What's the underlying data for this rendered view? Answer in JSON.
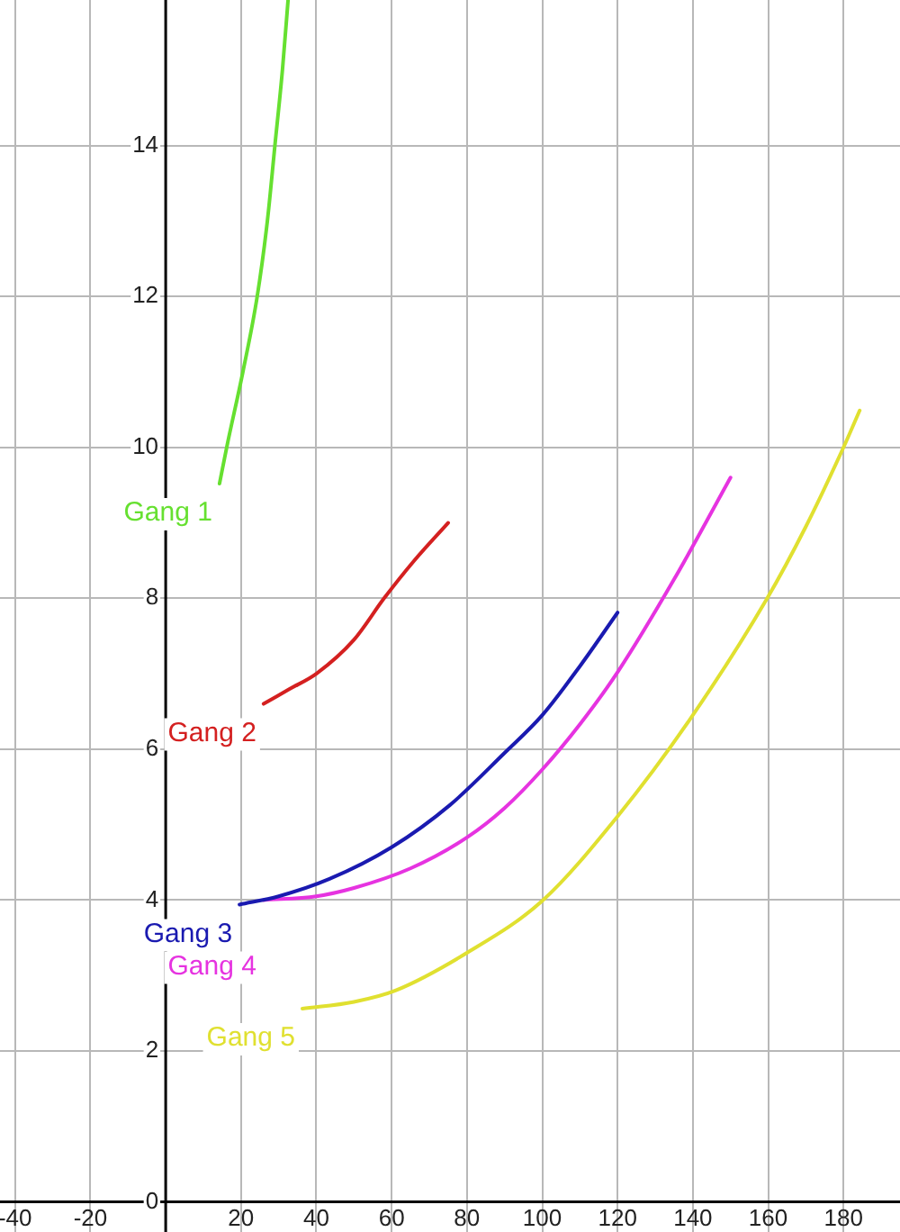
{
  "chart_data": {
    "type": "line",
    "xlim": [
      -44,
      195
    ],
    "ylim": [
      -0.4,
      15.93
    ],
    "xticks": [
      -40,
      -20,
      20,
      40,
      60,
      80,
      100,
      120,
      140,
      160,
      180
    ],
    "yticks": [
      0,
      2,
      4,
      6,
      8,
      10,
      12,
      14
    ],
    "grid": true,
    "marker": "none",
    "line_style": "solid",
    "series": [
      {
        "name": "Gang 1",
        "color": "#66e030",
        "x": [
          14.3,
          16.2,
          20.5,
          24.3,
          27,
          29,
          31,
          32.5
        ],
        "values": [
          9.52,
          10,
          11,
          12,
          13,
          14,
          15,
          15.93
        ]
      },
      {
        "name": "Gang 2",
        "color": "#d42020",
        "x": [
          26,
          33,
          40,
          50,
          58,
          66,
          75
        ],
        "values": [
          6.6,
          6.8,
          7.0,
          7.45,
          8.0,
          8.5,
          9.0
        ]
      },
      {
        "name": "Gang 3",
        "color": "#1a1ab0",
        "x": [
          19.6,
          30,
          43.5,
          60,
          75.5,
          90,
          100,
          110,
          120
        ],
        "values": [
          3.94,
          4.05,
          4.28,
          4.7,
          5.26,
          5.95,
          6.45,
          7.1,
          7.81
        ]
      },
      {
        "name": "Gang 4",
        "color": "#e633e0",
        "x": [
          26,
          40,
          50,
          65,
          80,
          90,
          100,
          110,
          120,
          135,
          150
        ],
        "values": [
          4.0,
          4.05,
          4.16,
          4.42,
          4.83,
          5.22,
          5.73,
          6.33,
          7.02,
          8.25,
          9.6
        ]
      },
      {
        "name": "Gang 5",
        "color": "#e0e030",
        "x": [
          36.3,
          50,
          61,
          80,
          100,
          120,
          139,
          159.5,
          170,
          180,
          184.3
        ],
        "values": [
          2.56,
          2.65,
          2.8,
          3.3,
          3.99,
          5.11,
          6.38,
          7.98,
          8.95,
          10.0,
          10.49
        ]
      }
    ]
  }
}
